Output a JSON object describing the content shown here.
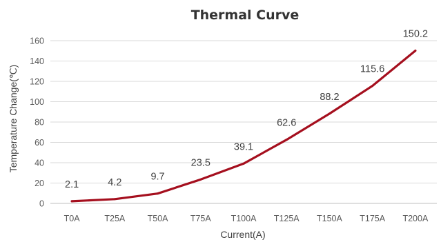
{
  "chart_data": {
    "type": "line",
    "title": "Thermal Curve",
    "xlabel": "Current(A)",
    "ylabel": "Temperature Change(℃)",
    "categories": [
      "T0A",
      "T25A",
      "T50A",
      "T75A",
      "T100A",
      "T125A",
      "T150A",
      "T175A",
      "T200A"
    ],
    "series": [
      {
        "values": [
          2.1,
          4.2,
          9.7,
          23.5,
          39.1,
          62.6,
          88.2,
          115.6,
          150.2
        ],
        "color": "#a50f1e"
      }
    ],
    "data_labels": [
      "2.1",
      "4.2",
      "9.7",
      "23.5",
      "39.1",
      "62.6",
      "88.2",
      "115.6",
      "150.2"
    ],
    "ylim": [
      0,
      160
    ],
    "yticks": [
      "0",
      "20",
      "40",
      "60",
      "80",
      "100",
      "120",
      "140",
      "160"
    ],
    "grid": true,
    "legend": "none"
  }
}
